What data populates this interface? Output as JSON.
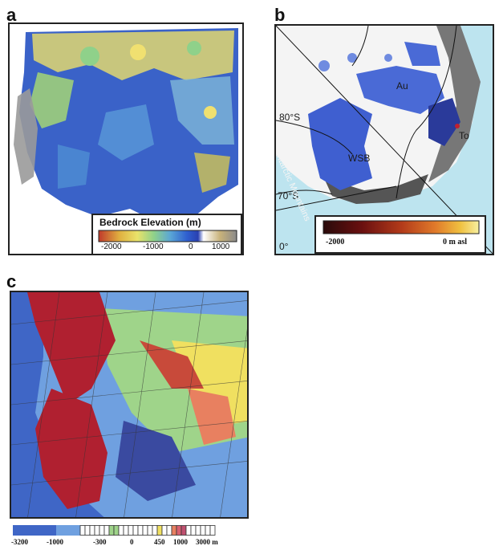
{
  "panels": {
    "a": {
      "letter": "a",
      "legend_title": "Bedrock Elevation (m)",
      "ticks": [
        "-2000",
        "-1000",
        "0",
        "1000"
      ],
      "colors": [
        "#c0392b",
        "#e0b040",
        "#e9e36a",
        "#8fd18a",
        "#5aa6d6",
        "#2f5fcf",
        "#2a40b0",
        "#ffffff",
        "#c8b27a",
        "#8a8a8a"
      ]
    },
    "b": {
      "letter": "b",
      "labels": {
        "au": "Au",
        "to": "To",
        "wsb": "WSB",
        "lat80": "80°S",
        "lat70": "70°S",
        "lon0": "0°",
        "mountains": "Transantarctic Mountains"
      },
      "legend_left": "-2000",
      "legend_right": "0 m asl",
      "colors": [
        "#2a0a0a",
        "#6a1010",
        "#b23a1a",
        "#e07a2a",
        "#f0c040",
        "#f7f0a0"
      ]
    },
    "c": {
      "letter": "c",
      "colorbar_labels": [
        "-3200",
        "-1000",
        "-300",
        "0",
        "450",
        "1000",
        "3000 m"
      ],
      "colors": [
        "#3f66c6",
        "#6fa0e0",
        "#e8f2f8",
        "#9fd48a",
        "#f0e060",
        "#e88060",
        "#b02030"
      ]
    }
  }
}
